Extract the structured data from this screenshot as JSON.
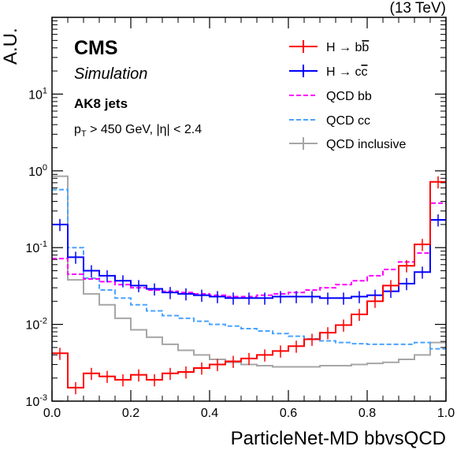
{
  "chart_data": {
    "type": "line",
    "drawstyle": "step-histogram",
    "energy_label": "(13 TeV)",
    "experiment": "CMS",
    "subtitle": "Simulation",
    "jet_label": "AK8 jets",
    "cut_label": {
      "pt": "p",
      "pt_sub": "T",
      "rest": " > 450 GeV, |η| < 2.4"
    },
    "xlabel": "ParticleNet-MD bbvsQCD",
    "ylabel": "A.U.",
    "xlim": [
      0,
      1
    ],
    "ylim": [
      0.001,
      100
    ],
    "yscale": "log",
    "x_ticks": [
      "0.0",
      "0.2",
      "0.4",
      "0.6",
      "0.8",
      "1.0"
    ],
    "y_ticks": [
      {
        "base": "10",
        "exp": "-3"
      },
      {
        "base": "10",
        "exp": "-2"
      },
      {
        "base": "10",
        "exp": "-1"
      },
      {
        "base": "10",
        "exp": "0"
      },
      {
        "base": "10",
        "exp": "1"
      }
    ],
    "legend_position": "top-right",
    "bin_edges": [
      0.0,
      0.04,
      0.08,
      0.12,
      0.16,
      0.2,
      0.24,
      0.28,
      0.32,
      0.36,
      0.4,
      0.44,
      0.48,
      0.52,
      0.56,
      0.6,
      0.64,
      0.68,
      0.72,
      0.76,
      0.8,
      0.84,
      0.88,
      0.92,
      0.96,
      1.0
    ],
    "series": [
      {
        "name_main": "H → b",
        "name_bar": "b",
        "color": "#ff0000",
        "dash": "",
        "values": [
          0.0042,
          0.0015,
          0.0023,
          0.0021,
          0.0019,
          0.0022,
          0.0019,
          0.0023,
          0.0024,
          0.0027,
          0.003,
          0.0033,
          0.0036,
          0.004,
          0.0045,
          0.0052,
          0.0064,
          0.0078,
          0.0098,
          0.0135,
          0.02,
          0.032,
          0.058,
          0.11,
          0.72
        ],
        "errbars": true
      },
      {
        "name_main": "H → c",
        "name_bar": "c",
        "color": "#0000ff",
        "dash": "",
        "values": [
          0.2,
          0.075,
          0.05,
          0.043,
          0.037,
          0.032,
          0.029,
          0.026,
          0.025,
          0.024,
          0.023,
          0.022,
          0.022,
          0.022,
          0.023,
          0.023,
          0.023,
          0.022,
          0.022,
          0.023,
          0.024,
          0.027,
          0.034,
          0.048,
          0.23
        ],
        "errbars": true
      },
      {
        "name": "QCD bb",
        "color": "#ff00ff",
        "dash": "6,3",
        "values": [
          0.072,
          0.045,
          0.039,
          0.036,
          0.033,
          0.03,
          0.028,
          0.027,
          0.026,
          0.025,
          0.024,
          0.023,
          0.023,
          0.024,
          0.025,
          0.026,
          0.028,
          0.03,
          0.033,
          0.037,
          0.043,
          0.052,
          0.065,
          0.085,
          0.38
        ],
        "errbars": false
      },
      {
        "name": "QCD cc",
        "color": "#4aa3ff",
        "dash": "6,3",
        "values": [
          0.57,
          0.1,
          0.04,
          0.028,
          0.022,
          0.018,
          0.015,
          0.013,
          0.012,
          0.011,
          0.01,
          0.0095,
          0.0088,
          0.0082,
          0.0076,
          0.007,
          0.0065,
          0.0061,
          0.0058,
          0.0056,
          0.0055,
          0.0055,
          0.0055,
          0.0058,
          0.0048
        ],
        "errbars": false
      },
      {
        "name": "QCD inclusive",
        "color": "#a6a6a6",
        "dash": "",
        "values": [
          0.85,
          0.038,
          0.025,
          0.018,
          0.012,
          0.0085,
          0.0068,
          0.0055,
          0.0046,
          0.004,
          0.0035,
          0.0032,
          0.003,
          0.0029,
          0.0028,
          0.0028,
          0.0028,
          0.0029,
          0.0029,
          0.003,
          0.0031,
          0.0032,
          0.0035,
          0.004,
          0.0058
        ],
        "errbars": false
      }
    ]
  }
}
